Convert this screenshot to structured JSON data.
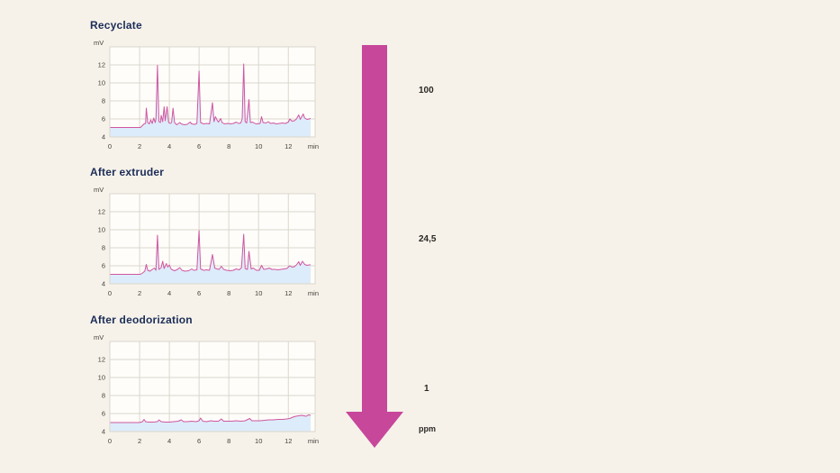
{
  "page": {
    "background": "#f6f2ea",
    "title_color": "#1c2d57"
  },
  "arrow": {
    "direction": "down",
    "color": "#c7479b",
    "value_top": "100",
    "value_middle": "24,5",
    "value_bottom": "1",
    "unit": "ppm"
  },
  "chart_data": [
    {
      "type": "line",
      "title": "Recyclate",
      "ylabel": "mV",
      "xlabel": "min",
      "xlim": [
        0,
        13.8
      ],
      "ylim": [
        4,
        14
      ],
      "xticks": [
        0,
        2,
        4,
        6,
        8,
        10,
        12
      ],
      "yticks": [
        4,
        6,
        8,
        10,
        12
      ],
      "grid": true,
      "legend": false,
      "line_color": "#d0569f",
      "fill_color": "#ddecfa",
      "plot_bg": "#fefdfa",
      "grid_color": "#dbd7cc",
      "points": [
        [
          0,
          5.05
        ],
        [
          1.0,
          5.05
        ],
        [
          2.05,
          5.05
        ],
        [
          2.15,
          5.2
        ],
        [
          2.3,
          5.45
        ],
        [
          2.4,
          5.5
        ],
        [
          2.45,
          7.2
        ],
        [
          2.55,
          5.6
        ],
        [
          2.65,
          5.45
        ],
        [
          2.75,
          5.9
        ],
        [
          2.85,
          5.5
        ],
        [
          2.95,
          6.1
        ],
        [
          3.05,
          5.6
        ],
        [
          3.1,
          6.0
        ],
        [
          3.2,
          11.95
        ],
        [
          3.3,
          5.7
        ],
        [
          3.4,
          5.6
        ],
        [
          3.45,
          6.4
        ],
        [
          3.55,
          5.7
        ],
        [
          3.65,
          7.35
        ],
        [
          3.72,
          5.8
        ],
        [
          3.85,
          7.35
        ],
        [
          3.95,
          5.6
        ],
        [
          4.05,
          5.5
        ],
        [
          4.15,
          5.6
        ],
        [
          4.25,
          7.2
        ],
        [
          4.35,
          5.6
        ],
        [
          4.5,
          5.35
        ],
        [
          4.7,
          5.6
        ],
        [
          4.8,
          5.45
        ],
        [
          5.0,
          5.35
        ],
        [
          5.2,
          5.4
        ],
        [
          5.4,
          5.65
        ],
        [
          5.5,
          5.45
        ],
        [
          5.7,
          5.4
        ],
        [
          5.85,
          5.5
        ],
        [
          6.0,
          11.3
        ],
        [
          6.1,
          5.6
        ],
        [
          6.3,
          5.45
        ],
        [
          6.5,
          5.5
        ],
        [
          6.7,
          5.45
        ],
        [
          6.9,
          7.8
        ],
        [
          7.0,
          5.7
        ],
        [
          7.1,
          6.25
        ],
        [
          7.2,
          5.9
        ],
        [
          7.3,
          5.65
        ],
        [
          7.45,
          6.05
        ],
        [
          7.55,
          5.6
        ],
        [
          7.7,
          5.45
        ],
        [
          7.9,
          5.5
        ],
        [
          8.1,
          5.45
        ],
        [
          8.3,
          5.5
        ],
        [
          8.5,
          5.65
        ],
        [
          8.65,
          5.5
        ],
        [
          8.8,
          5.55
        ],
        [
          8.9,
          6.0
        ],
        [
          9.0,
          12.1
        ],
        [
          9.1,
          5.7
        ],
        [
          9.2,
          5.55
        ],
        [
          9.35,
          8.15
        ],
        [
          9.45,
          5.6
        ],
        [
          9.6,
          5.65
        ],
        [
          9.75,
          5.5
        ],
        [
          9.9,
          5.45
        ],
        [
          10.1,
          5.5
        ],
        [
          10.2,
          6.25
        ],
        [
          10.3,
          5.6
        ],
        [
          10.5,
          5.55
        ],
        [
          10.65,
          5.7
        ],
        [
          10.8,
          5.5
        ],
        [
          11.0,
          5.55
        ],
        [
          11.2,
          5.45
        ],
        [
          11.4,
          5.5
        ],
        [
          11.6,
          5.55
        ],
        [
          11.8,
          5.5
        ],
        [
          12.0,
          5.65
        ],
        [
          12.1,
          6.0
        ],
        [
          12.25,
          5.75
        ],
        [
          12.4,
          5.8
        ],
        [
          12.55,
          6.0
        ],
        [
          12.7,
          6.45
        ],
        [
          12.8,
          5.95
        ],
        [
          13.0,
          6.55
        ],
        [
          13.1,
          6.1
        ],
        [
          13.25,
          5.95
        ],
        [
          13.4,
          6.0
        ],
        [
          13.5,
          6.05
        ]
      ]
    },
    {
      "type": "line",
      "title": "After extruder",
      "ylabel": "mV",
      "xlabel": "min",
      "xlim": [
        0,
        13.8
      ],
      "ylim": [
        4,
        14
      ],
      "xticks": [
        0,
        2,
        4,
        6,
        8,
        10,
        12
      ],
      "yticks": [
        4,
        6,
        8,
        10,
        12
      ],
      "grid": true,
      "legend": false,
      "line_color": "#d0569f",
      "fill_color": "#ddecfa",
      "plot_bg": "#fefdfa",
      "grid_color": "#dbd7cc",
      "points": [
        [
          0,
          5.05
        ],
        [
          1.0,
          5.05
        ],
        [
          2.05,
          5.05
        ],
        [
          2.2,
          5.2
        ],
        [
          2.35,
          5.4
        ],
        [
          2.45,
          6.15
        ],
        [
          2.55,
          5.5
        ],
        [
          2.7,
          5.4
        ],
        [
          2.85,
          5.6
        ],
        [
          3.0,
          5.75
        ],
        [
          3.1,
          5.5
        ],
        [
          3.2,
          9.4
        ],
        [
          3.3,
          5.6
        ],
        [
          3.45,
          5.8
        ],
        [
          3.55,
          6.5
        ],
        [
          3.65,
          5.7
        ],
        [
          3.8,
          6.25
        ],
        [
          3.9,
          5.85
        ],
        [
          4.0,
          6.1
        ],
        [
          4.1,
          5.7
        ],
        [
          4.2,
          5.55
        ],
        [
          4.35,
          5.45
        ],
        [
          4.55,
          5.6
        ],
        [
          4.7,
          5.8
        ],
        [
          4.85,
          5.5
        ],
        [
          5.05,
          5.4
        ],
        [
          5.3,
          5.45
        ],
        [
          5.5,
          5.65
        ],
        [
          5.65,
          5.5
        ],
        [
          5.85,
          5.55
        ],
        [
          6.0,
          9.9
        ],
        [
          6.1,
          5.65
        ],
        [
          6.3,
          5.5
        ],
        [
          6.5,
          5.55
        ],
        [
          6.7,
          5.5
        ],
        [
          6.9,
          7.25
        ],
        [
          7.05,
          5.75
        ],
        [
          7.2,
          5.65
        ],
        [
          7.35,
          5.6
        ],
        [
          7.5,
          5.95
        ],
        [
          7.65,
          5.6
        ],
        [
          7.85,
          5.5
        ],
        [
          8.1,
          5.45
        ],
        [
          8.3,
          5.5
        ],
        [
          8.5,
          5.65
        ],
        [
          8.7,
          5.55
        ],
        [
          8.85,
          5.8
        ],
        [
          9.0,
          9.5
        ],
        [
          9.1,
          5.7
        ],
        [
          9.25,
          5.6
        ],
        [
          9.35,
          7.6
        ],
        [
          9.5,
          5.65
        ],
        [
          9.65,
          5.75
        ],
        [
          9.85,
          5.5
        ],
        [
          10.05,
          5.5
        ],
        [
          10.2,
          6.05
        ],
        [
          10.35,
          5.6
        ],
        [
          10.55,
          5.65
        ],
        [
          10.7,
          5.75
        ],
        [
          10.9,
          5.6
        ],
        [
          11.1,
          5.6
        ],
        [
          11.3,
          5.55
        ],
        [
          11.5,
          5.6
        ],
        [
          11.7,
          5.65
        ],
        [
          11.9,
          5.7
        ],
        [
          12.1,
          6.0
        ],
        [
          12.25,
          5.85
        ],
        [
          12.4,
          5.9
        ],
        [
          12.55,
          6.1
        ],
        [
          12.7,
          6.45
        ],
        [
          12.8,
          6.05
        ],
        [
          12.95,
          6.5
        ],
        [
          13.1,
          6.15
        ],
        [
          13.25,
          6.05
        ],
        [
          13.4,
          6.1
        ],
        [
          13.5,
          6.1
        ]
      ]
    },
    {
      "type": "line",
      "title": "After deodorization",
      "ylabel": "mV",
      "xlabel": "min",
      "xlim": [
        0,
        13.8
      ],
      "ylim": [
        4,
        14
      ],
      "xticks": [
        0,
        2,
        4,
        6,
        8,
        10,
        12
      ],
      "yticks": [
        4,
        6,
        8,
        10,
        12
      ],
      "grid": true,
      "legend": false,
      "line_color": "#d0569f",
      "fill_color": "#ddecfa",
      "plot_bg": "#fefdfa",
      "grid_color": "#dbd7cc",
      "points": [
        [
          0,
          5.0
        ],
        [
          1.0,
          5.0
        ],
        [
          2.0,
          5.0
        ],
        [
          2.2,
          5.1
        ],
        [
          2.3,
          5.35
        ],
        [
          2.4,
          5.1
        ],
        [
          2.6,
          5.05
        ],
        [
          2.9,
          5.05
        ],
        [
          3.2,
          5.1
        ],
        [
          3.3,
          5.3
        ],
        [
          3.45,
          5.1
        ],
        [
          3.7,
          5.05
        ],
        [
          4.0,
          5.05
        ],
        [
          4.3,
          5.1
        ],
        [
          4.6,
          5.15
        ],
        [
          4.8,
          5.3
        ],
        [
          4.95,
          5.1
        ],
        [
          5.2,
          5.1
        ],
        [
          5.5,
          5.15
        ],
        [
          5.8,
          5.1
        ],
        [
          6.0,
          5.2
        ],
        [
          6.1,
          5.5
        ],
        [
          6.25,
          5.15
        ],
        [
          6.5,
          5.1
        ],
        [
          6.8,
          5.2
        ],
        [
          7.0,
          5.15
        ],
        [
          7.3,
          5.15
        ],
        [
          7.5,
          5.4
        ],
        [
          7.65,
          5.15
        ],
        [
          7.9,
          5.15
        ],
        [
          8.2,
          5.15
        ],
        [
          8.5,
          5.2
        ],
        [
          8.8,
          5.15
        ],
        [
          9.1,
          5.2
        ],
        [
          9.4,
          5.45
        ],
        [
          9.55,
          5.2
        ],
        [
          9.8,
          5.2
        ],
        [
          10.1,
          5.2
        ],
        [
          10.4,
          5.25
        ],
        [
          10.7,
          5.3
        ],
        [
          11.0,
          5.3
        ],
        [
          11.3,
          5.35
        ],
        [
          11.6,
          5.35
        ],
        [
          11.9,
          5.4
        ],
        [
          12.1,
          5.45
        ],
        [
          12.3,
          5.6
        ],
        [
          12.5,
          5.7
        ],
        [
          12.7,
          5.75
        ],
        [
          12.9,
          5.8
        ],
        [
          13.05,
          5.75
        ],
        [
          13.2,
          5.7
        ],
        [
          13.35,
          5.85
        ],
        [
          13.5,
          5.8
        ]
      ]
    }
  ]
}
